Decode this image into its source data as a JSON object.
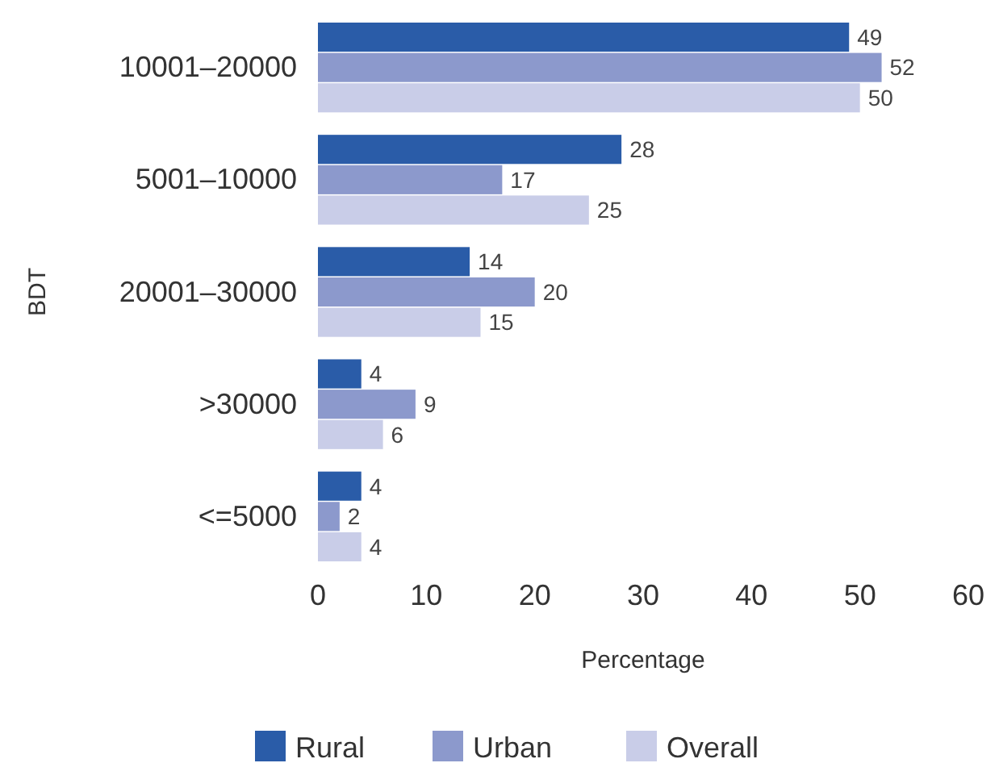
{
  "chart_data": {
    "type": "bar",
    "orientation": "horizontal",
    "categories": [
      "10001–20000",
      "5001–10000",
      "20001–30000",
      ">30000",
      "<=5000"
    ],
    "series": [
      {
        "name": "Rural",
        "color": "#2a5ca8",
        "values": [
          49,
          28,
          14,
          4,
          4
        ]
      },
      {
        "name": "Urban",
        "color": "#8c99cc",
        "values": [
          52,
          17,
          20,
          9,
          2
        ]
      },
      {
        "name": "Overall",
        "color": "#c9cde8",
        "values": [
          50,
          25,
          15,
          6,
          4
        ]
      }
    ],
    "xlim": [
      0,
      60
    ],
    "xticks": [
      0,
      10,
      20,
      30,
      40,
      50,
      60
    ],
    "xlabel": "Percentage",
    "ylabel": "BDT",
    "data_labels": true,
    "legend": "bottom",
    "grid": false
  }
}
